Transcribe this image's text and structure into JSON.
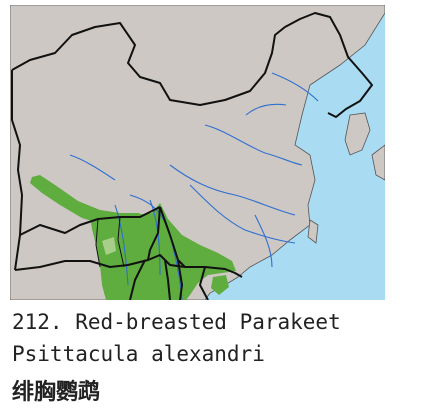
{
  "map": {
    "colors": {
      "land": "#cdc8c3",
      "sea": "#a9dbf3",
      "range_main": "#5fac3f",
      "range_light": "#a8cf8a",
      "border": "#111111",
      "river": "#2f6fd0"
    }
  },
  "caption": {
    "number_line": "212. Red-breasted Parakeet",
    "latin_name": "Psittacula alexandri",
    "chinese_name": "绯胸鹦鹉"
  }
}
